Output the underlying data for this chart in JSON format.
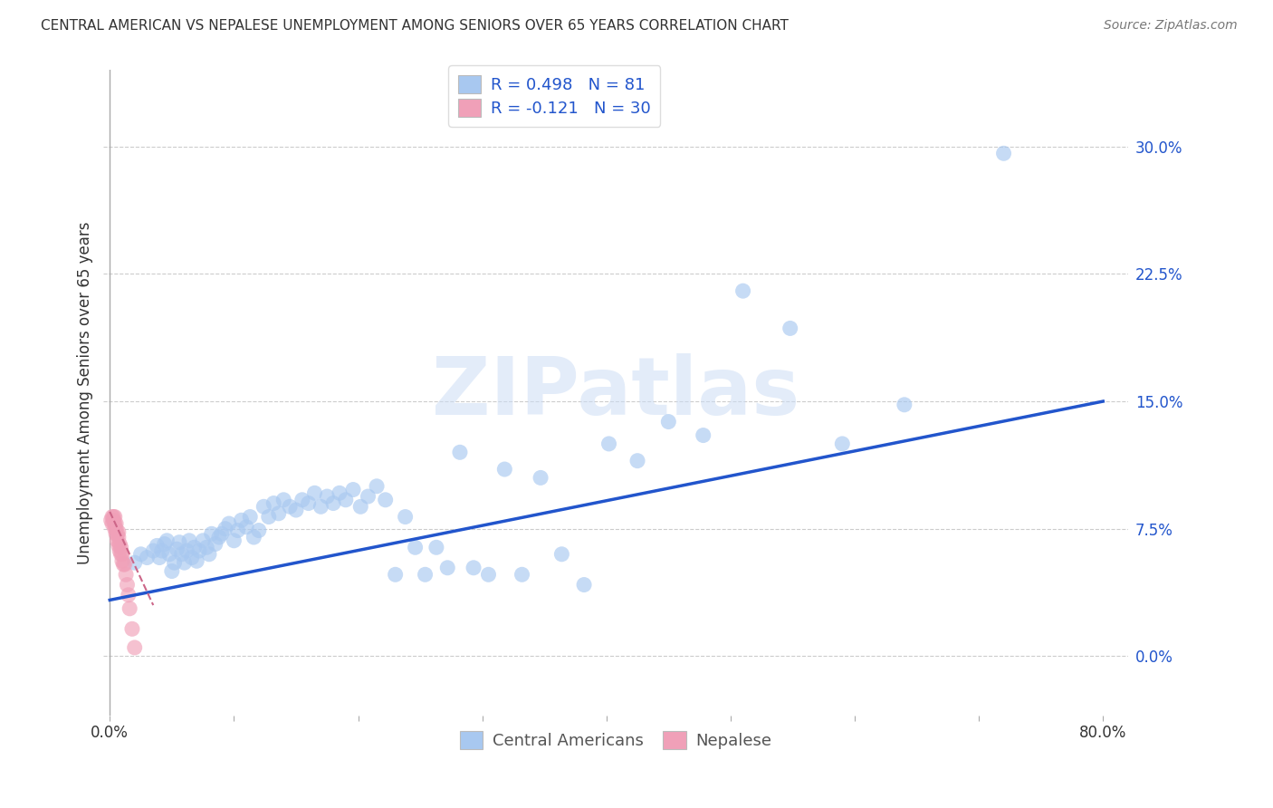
{
  "title": "CENTRAL AMERICAN VS NEPALESE UNEMPLOYMENT AMONG SENIORS OVER 65 YEARS CORRELATION CHART",
  "source": "Source: ZipAtlas.com",
  "ylabel": "Unemployment Among Seniors over 65 years",
  "xlim": [
    -0.005,
    0.82
  ],
  "ylim": [
    -0.035,
    0.345
  ],
  "xticks": [
    0.0,
    0.1,
    0.2,
    0.3,
    0.4,
    0.5,
    0.6,
    0.7,
    0.8
  ],
  "yticks_right": [
    0.0,
    0.075,
    0.15,
    0.225,
    0.3
  ],
  "ytick_labels_right": [
    "0.0%",
    "7.5%",
    "15.0%",
    "22.5%",
    "30.0%"
  ],
  "blue_R": 0.498,
  "blue_N": 81,
  "pink_R": -0.121,
  "pink_N": 30,
  "blue_color": "#a8c8f0",
  "blue_line_color": "#2255cc",
  "pink_color": "#f0a0b8",
  "pink_line_color": "#cc6688",
  "watermark": "ZIPatlas",
  "legend_label_blue": "Central Americans",
  "legend_label_pink": "Nepalese",
  "blue_trend_x0": 0.0,
  "blue_trend_y0": 0.033,
  "blue_trend_x1": 0.8,
  "blue_trend_y1": 0.15,
  "pink_trend_x0": 0.0,
  "pink_trend_y0": 0.085,
  "pink_trend_x1": 0.035,
  "pink_trend_y1": 0.03,
  "blue_scatter_x": [
    0.02,
    0.025,
    0.03,
    0.035,
    0.038,
    0.04,
    0.042,
    0.044,
    0.046,
    0.048,
    0.05,
    0.052,
    0.054,
    0.056,
    0.058,
    0.06,
    0.062,
    0.064,
    0.066,
    0.068,
    0.07,
    0.072,
    0.075,
    0.078,
    0.08,
    0.082,
    0.085,
    0.088,
    0.09,
    0.093,
    0.096,
    0.1,
    0.103,
    0.106,
    0.11,
    0.113,
    0.116,
    0.12,
    0.124,
    0.128,
    0.132,
    0.136,
    0.14,
    0.145,
    0.15,
    0.155,
    0.16,
    0.165,
    0.17,
    0.175,
    0.18,
    0.185,
    0.19,
    0.196,
    0.202,
    0.208,
    0.215,
    0.222,
    0.23,
    0.238,
    0.246,
    0.254,
    0.263,
    0.272,
    0.282,
    0.293,
    0.305,
    0.318,
    0.332,
    0.347,
    0.364,
    0.382,
    0.402,
    0.425,
    0.45,
    0.478,
    0.51,
    0.548,
    0.59,
    0.64,
    0.72
  ],
  "blue_scatter_y": [
    0.055,
    0.06,
    0.058,
    0.062,
    0.065,
    0.058,
    0.062,
    0.066,
    0.068,
    0.06,
    0.05,
    0.055,
    0.063,
    0.067,
    0.06,
    0.055,
    0.062,
    0.068,
    0.058,
    0.064,
    0.056,
    0.062,
    0.068,
    0.064,
    0.06,
    0.072,
    0.066,
    0.07,
    0.072,
    0.075,
    0.078,
    0.068,
    0.074,
    0.08,
    0.076,
    0.082,
    0.07,
    0.074,
    0.088,
    0.082,
    0.09,
    0.084,
    0.092,
    0.088,
    0.086,
    0.092,
    0.09,
    0.096,
    0.088,
    0.094,
    0.09,
    0.096,
    0.092,
    0.098,
    0.088,
    0.094,
    0.1,
    0.092,
    0.048,
    0.082,
    0.064,
    0.048,
    0.064,
    0.052,
    0.12,
    0.052,
    0.048,
    0.11,
    0.048,
    0.105,
    0.06,
    0.042,
    0.125,
    0.115,
    0.138,
    0.13,
    0.215,
    0.193,
    0.125,
    0.148,
    0.296
  ],
  "pink_scatter_x": [
    0.001,
    0.002,
    0.002,
    0.003,
    0.003,
    0.004,
    0.004,
    0.004,
    0.005,
    0.005,
    0.005,
    0.006,
    0.006,
    0.007,
    0.007,
    0.007,
    0.008,
    0.008,
    0.009,
    0.009,
    0.01,
    0.01,
    0.011,
    0.012,
    0.013,
    0.014,
    0.015,
    0.016,
    0.018,
    0.02
  ],
  "pink_scatter_y": [
    0.08,
    0.082,
    0.078,
    0.08,
    0.082,
    0.075,
    0.078,
    0.082,
    0.072,
    0.075,
    0.078,
    0.068,
    0.072,
    0.065,
    0.07,
    0.073,
    0.062,
    0.066,
    0.06,
    0.064,
    0.056,
    0.06,
    0.054,
    0.054,
    0.048,
    0.042,
    0.036,
    0.028,
    0.016,
    0.005
  ]
}
